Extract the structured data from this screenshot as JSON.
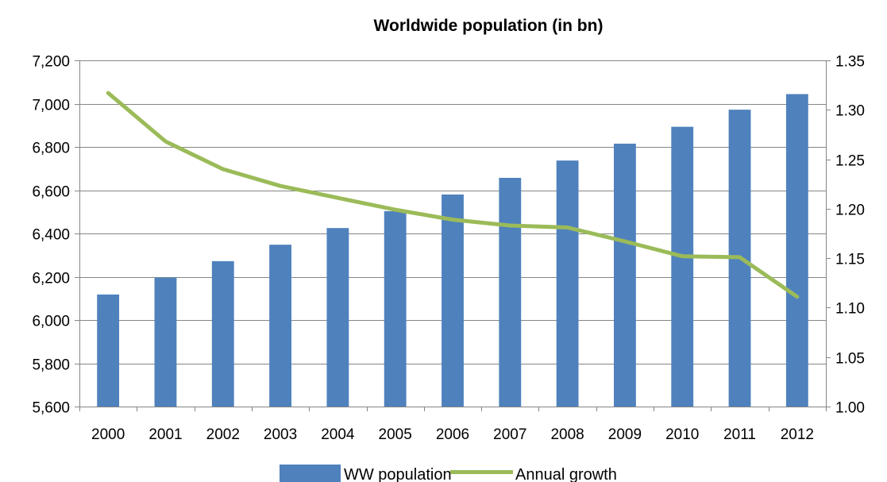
{
  "chart_data": {
    "type": "bar",
    "title": "Worldwide population (in bn)",
    "xlabel": "",
    "ylabel": "",
    "categories": [
      "2000",
      "2001",
      "2002",
      "2003",
      "2004",
      "2005",
      "2006",
      "2007",
      "2008",
      "2009",
      "2010",
      "2011",
      "2012"
    ],
    "y_left": {
      "min": 5600,
      "max": 7200,
      "step": 200,
      "tick_labels": [
        "5,600",
        "5,800",
        "6,000",
        "6,200",
        "6,400",
        "6,600",
        "6,800",
        "7,000",
        "7,200"
      ]
    },
    "y_right": {
      "min": 1.0,
      "max": 1.35,
      "step": 0.05,
      "tick_labels": [
        "1.00",
        "1.05",
        "1.10",
        "1.15",
        "1.20",
        "1.25",
        "1.30",
        "1.35"
      ]
    },
    "series": [
      {
        "name": "WW population",
        "type": "bar",
        "axis": "left",
        "color": "#4F81BD",
        "values": [
          6118,
          6196,
          6272,
          6348,
          6425,
          6503,
          6580,
          6657,
          6737,
          6815,
          6893,
          6972,
          7044
        ]
      },
      {
        "name": "Annual growth",
        "type": "line",
        "axis": "right",
        "color": "#9BBB59",
        "values": [
          1.317,
          1.268,
          1.24,
          1.223,
          1.211,
          1.199,
          1.189,
          1.183,
          1.181,
          1.167,
          1.152,
          1.151,
          1.111
        ]
      }
    ],
    "grid": true,
    "legend": "bottom"
  }
}
